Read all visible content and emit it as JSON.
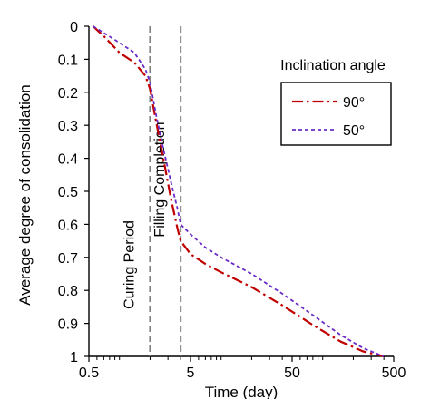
{
  "chart_data": {
    "type": "line",
    "xlabel": "Time (day)",
    "ylabel": "Average degree of consolidation",
    "xscale": "log",
    "xlim": [
      0.5,
      500
    ],
    "ylim": [
      1,
      0
    ],
    "y_inverted": true,
    "x_ticks": [
      "0.5",
      "5",
      "50",
      "500"
    ],
    "y_ticks": [
      "0",
      "0.1",
      "0.2",
      "0.3",
      "0.4",
      "0.5",
      "0.6",
      "0.7",
      "0.8",
      "0.9",
      "1"
    ],
    "grid": false,
    "legend": {
      "title": "Inclination angle",
      "position": "top-right",
      "entries": [
        "90°",
        "50°"
      ]
    },
    "vlines": [
      {
        "x": 2,
        "label": "Curing Period"
      },
      {
        "x": 4,
        "label": "Filling Completion"
      }
    ],
    "series": [
      {
        "name": "90°",
        "color": "#c00000",
        "dash": "dash-dot",
        "x": [
          0.55,
          0.7,
          1.0,
          1.4,
          1.8,
          2.0,
          2.3,
          2.7,
          3.2,
          3.7,
          4.0,
          5,
          7,
          10,
          20,
          40,
          80,
          150,
          250,
          400
        ],
        "y": [
          0.0,
          0.03,
          0.08,
          0.11,
          0.15,
          0.19,
          0.29,
          0.4,
          0.52,
          0.61,
          0.65,
          0.69,
          0.72,
          0.745,
          0.79,
          0.845,
          0.905,
          0.955,
          0.985,
          1.0
        ]
      },
      {
        "name": "50°",
        "color": "#6a2cc8",
        "dash": "dashed",
        "x": [
          0.55,
          0.7,
          1.0,
          1.4,
          1.8,
          2.0,
          2.3,
          2.7,
          3.2,
          3.7,
          4.0,
          5,
          7,
          10,
          20,
          40,
          80,
          150,
          250,
          400
        ],
        "y": [
          0.0,
          0.02,
          0.05,
          0.08,
          0.13,
          0.17,
          0.27,
          0.37,
          0.47,
          0.55,
          0.6,
          0.63,
          0.67,
          0.7,
          0.75,
          0.81,
          0.875,
          0.935,
          0.975,
          1.0
        ]
      }
    ]
  }
}
